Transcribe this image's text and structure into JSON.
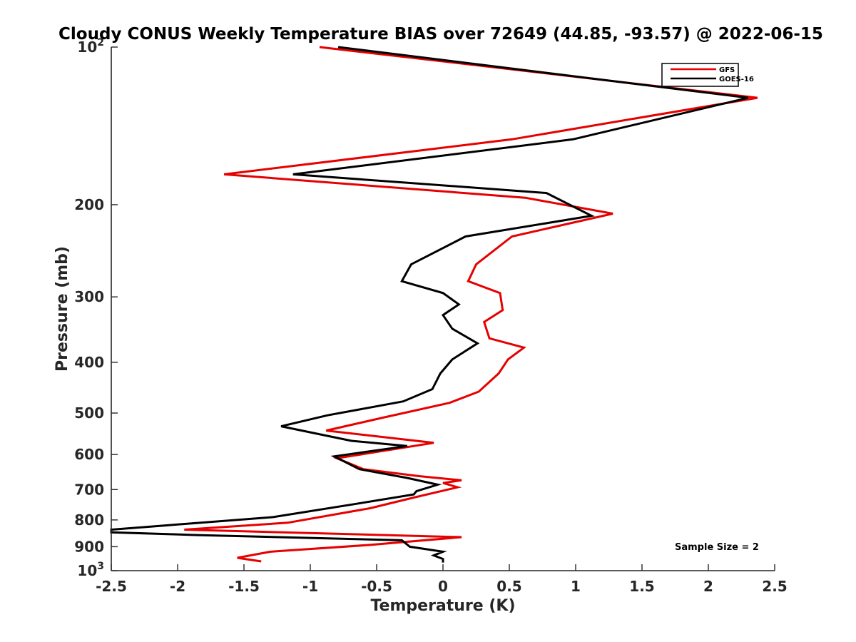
{
  "chart_data": {
    "type": "line",
    "title": "Cloudy CONUS Weekly Temperature BIAS over 72649 (44.85, -93.57) @ 2022-06-15",
    "xlabel": "Temperature (K)",
    "ylabel": "Pressure (mb)",
    "xlim": [
      -2.5,
      2.5
    ],
    "ylim": [
      100,
      1000
    ],
    "y_scale": "log",
    "y_direction": "reversed",
    "x_ticks": [
      "-2.5",
      "-2",
      "-1.5",
      "-1",
      "-0.5",
      "0",
      "0.5",
      "1",
      "1.5",
      "2",
      "2.5"
    ],
    "y_ticks": [
      {
        "value": 100,
        "base": "10",
        "exp": "2"
      },
      {
        "value": 200,
        "label": "200"
      },
      {
        "value": 300,
        "label": "300"
      },
      {
        "value": 400,
        "label": "400"
      },
      {
        "value": 500,
        "label": "500"
      },
      {
        "value": 600,
        "label": "600"
      },
      {
        "value": 700,
        "label": "700"
      },
      {
        "value": 800,
        "label": "800"
      },
      {
        "value": 900,
        "label": "900"
      },
      {
        "value": 1000,
        "base": "10",
        "exp": "3"
      }
    ],
    "grid": false,
    "legend_position": "top-right",
    "annotation": "Sample Size = 2",
    "series": [
      {
        "name": "GFS",
        "color": "#e60000",
        "points": [
          [
            -0.93,
            100
          ],
          [
            2.37,
            125
          ],
          [
            0.52,
            150
          ],
          [
            -1.65,
            175
          ],
          [
            0.62,
            194
          ],
          [
            1.28,
            208
          ],
          [
            0.52,
            230
          ],
          [
            0.25,
            260
          ],
          [
            0.19,
            280
          ],
          [
            0.43,
            295
          ],
          [
            0.45,
            318
          ],
          [
            0.31,
            335
          ],
          [
            0.35,
            360
          ],
          [
            0.61,
            375
          ],
          [
            0.49,
            395
          ],
          [
            0.42,
            420
          ],
          [
            0.27,
            455
          ],
          [
            0.05,
            478
          ],
          [
            -0.45,
            510
          ],
          [
            -0.88,
            540
          ],
          [
            -0.07,
            570
          ],
          [
            -0.8,
            610
          ],
          [
            -0.6,
            640
          ],
          [
            -0.18,
            660
          ],
          [
            0.14,
            672
          ],
          [
            0.0,
            680
          ],
          [
            0.11,
            693
          ],
          [
            -0.22,
            725
          ],
          [
            -0.55,
            760
          ],
          [
            -1.17,
            810
          ],
          [
            -1.95,
            835
          ],
          [
            0.14,
            863
          ],
          [
            -0.55,
            893
          ],
          [
            -1.3,
            920
          ],
          [
            -1.55,
            945
          ],
          [
            -1.37,
            960
          ]
        ]
      },
      {
        "name": "GOES-16",
        "color": "#000000",
        "points": [
          [
            -0.79,
            100
          ],
          [
            2.3,
            125
          ],
          [
            0.98,
            150
          ],
          [
            -1.13,
            175
          ],
          [
            0.78,
            190
          ],
          [
            1.12,
            210
          ],
          [
            0.17,
            230
          ],
          [
            -0.24,
            260
          ],
          [
            -0.31,
            280
          ],
          [
            0.0,
            295
          ],
          [
            0.12,
            310
          ],
          [
            0.0,
            325
          ],
          [
            0.07,
            345
          ],
          [
            0.26,
            368
          ],
          [
            0.07,
            395
          ],
          [
            -0.02,
            420
          ],
          [
            -0.08,
            450
          ],
          [
            -0.3,
            475
          ],
          [
            -0.87,
            505
          ],
          [
            -1.22,
            530
          ],
          [
            -0.69,
            565
          ],
          [
            -0.27,
            578
          ],
          [
            -0.82,
            605
          ],
          [
            -0.63,
            640
          ],
          [
            -0.27,
            665
          ],
          [
            -0.04,
            685
          ],
          [
            -0.2,
            705
          ],
          [
            -0.22,
            715
          ],
          [
            -0.65,
            745
          ],
          [
            -1.28,
            790
          ],
          [
            -2.1,
            820
          ],
          [
            -2.5,
            835
          ],
          [
            -2.5,
            845
          ],
          [
            -1.85,
            855
          ],
          [
            -0.31,
            875
          ],
          [
            -0.25,
            900
          ],
          [
            0.0,
            920
          ],
          [
            -0.07,
            935
          ],
          [
            0.0,
            950
          ],
          [
            0.0,
            965
          ]
        ]
      }
    ]
  }
}
